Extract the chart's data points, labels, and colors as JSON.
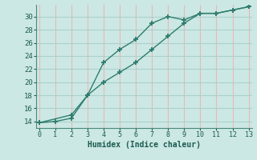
{
  "line1_x": [
    0,
    1,
    2,
    3,
    4,
    5,
    6,
    7,
    8,
    9,
    10,
    11,
    12,
    13
  ],
  "line1_y": [
    13.8,
    14.0,
    14.5,
    18.0,
    23.0,
    25.0,
    26.5,
    29.0,
    30.0,
    29.5,
    30.5,
    30.5,
    31.0,
    31.5
  ],
  "line2_x": [
    0,
    2,
    3,
    4,
    5,
    6,
    7,
    8,
    9,
    10,
    11,
    12,
    13
  ],
  "line2_y": [
    13.8,
    15.0,
    18.0,
    20.0,
    21.5,
    23.0,
    25.0,
    27.0,
    29.0,
    30.5,
    30.5,
    31.0,
    31.5
  ],
  "line_color": "#2e7d6e",
  "bg_color": "#cce8e4",
  "hgrid_color": "#aad0cc",
  "vgrid_color": "#e8b8b8",
  "xlabel": "Humidex (Indice chaleur)",
  "xlim": [
    -0.2,
    13.2
  ],
  "ylim": [
    13.0,
    31.8
  ],
  "xticks": [
    0,
    1,
    2,
    3,
    4,
    5,
    6,
    7,
    8,
    9,
    10,
    11,
    12,
    13
  ],
  "yticks": [
    14,
    16,
    18,
    20,
    22,
    24,
    26,
    28,
    30
  ],
  "marker": "+"
}
